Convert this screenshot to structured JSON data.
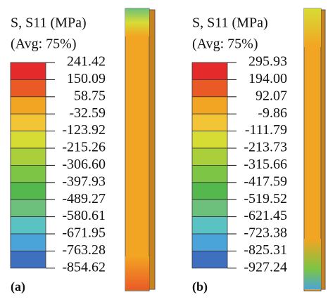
{
  "colors": [
    "#e42a2a",
    "#ea5a26",
    "#f2a423",
    "#f2c436",
    "#d7dc35",
    "#a9cf3b",
    "#7cc545",
    "#55b84f",
    "#6cc07c",
    "#5bc2c3",
    "#4aa4d9",
    "#3f6fbf",
    "#3c4fa6"
  ],
  "panels": [
    {
      "title": "S, S11 (MPa)",
      "subtitle": "(Avg: 75%)",
      "labels": [
        "241.42",
        "150.09",
        "58.75",
        "-32.59",
        "-123.92",
        "-215.26",
        "-306.60",
        "-397.93",
        "-489.27",
        "-580.61",
        "-671.95",
        "-763.28",
        "-854.62"
      ],
      "caption": "(a)"
    },
    {
      "title": "S, S11 (MPa)",
      "subtitle": "(Avg: 75%)",
      "labels": [
        "295.93",
        "194.00",
        "92.07",
        "-9.86",
        "-111.79",
        "-213.73",
        "-315.66",
        "-417.59",
        "-519.52",
        "-621.45",
        "-723.38",
        "-825.31",
        "-927.24"
      ],
      "caption": "(b)"
    }
  ]
}
